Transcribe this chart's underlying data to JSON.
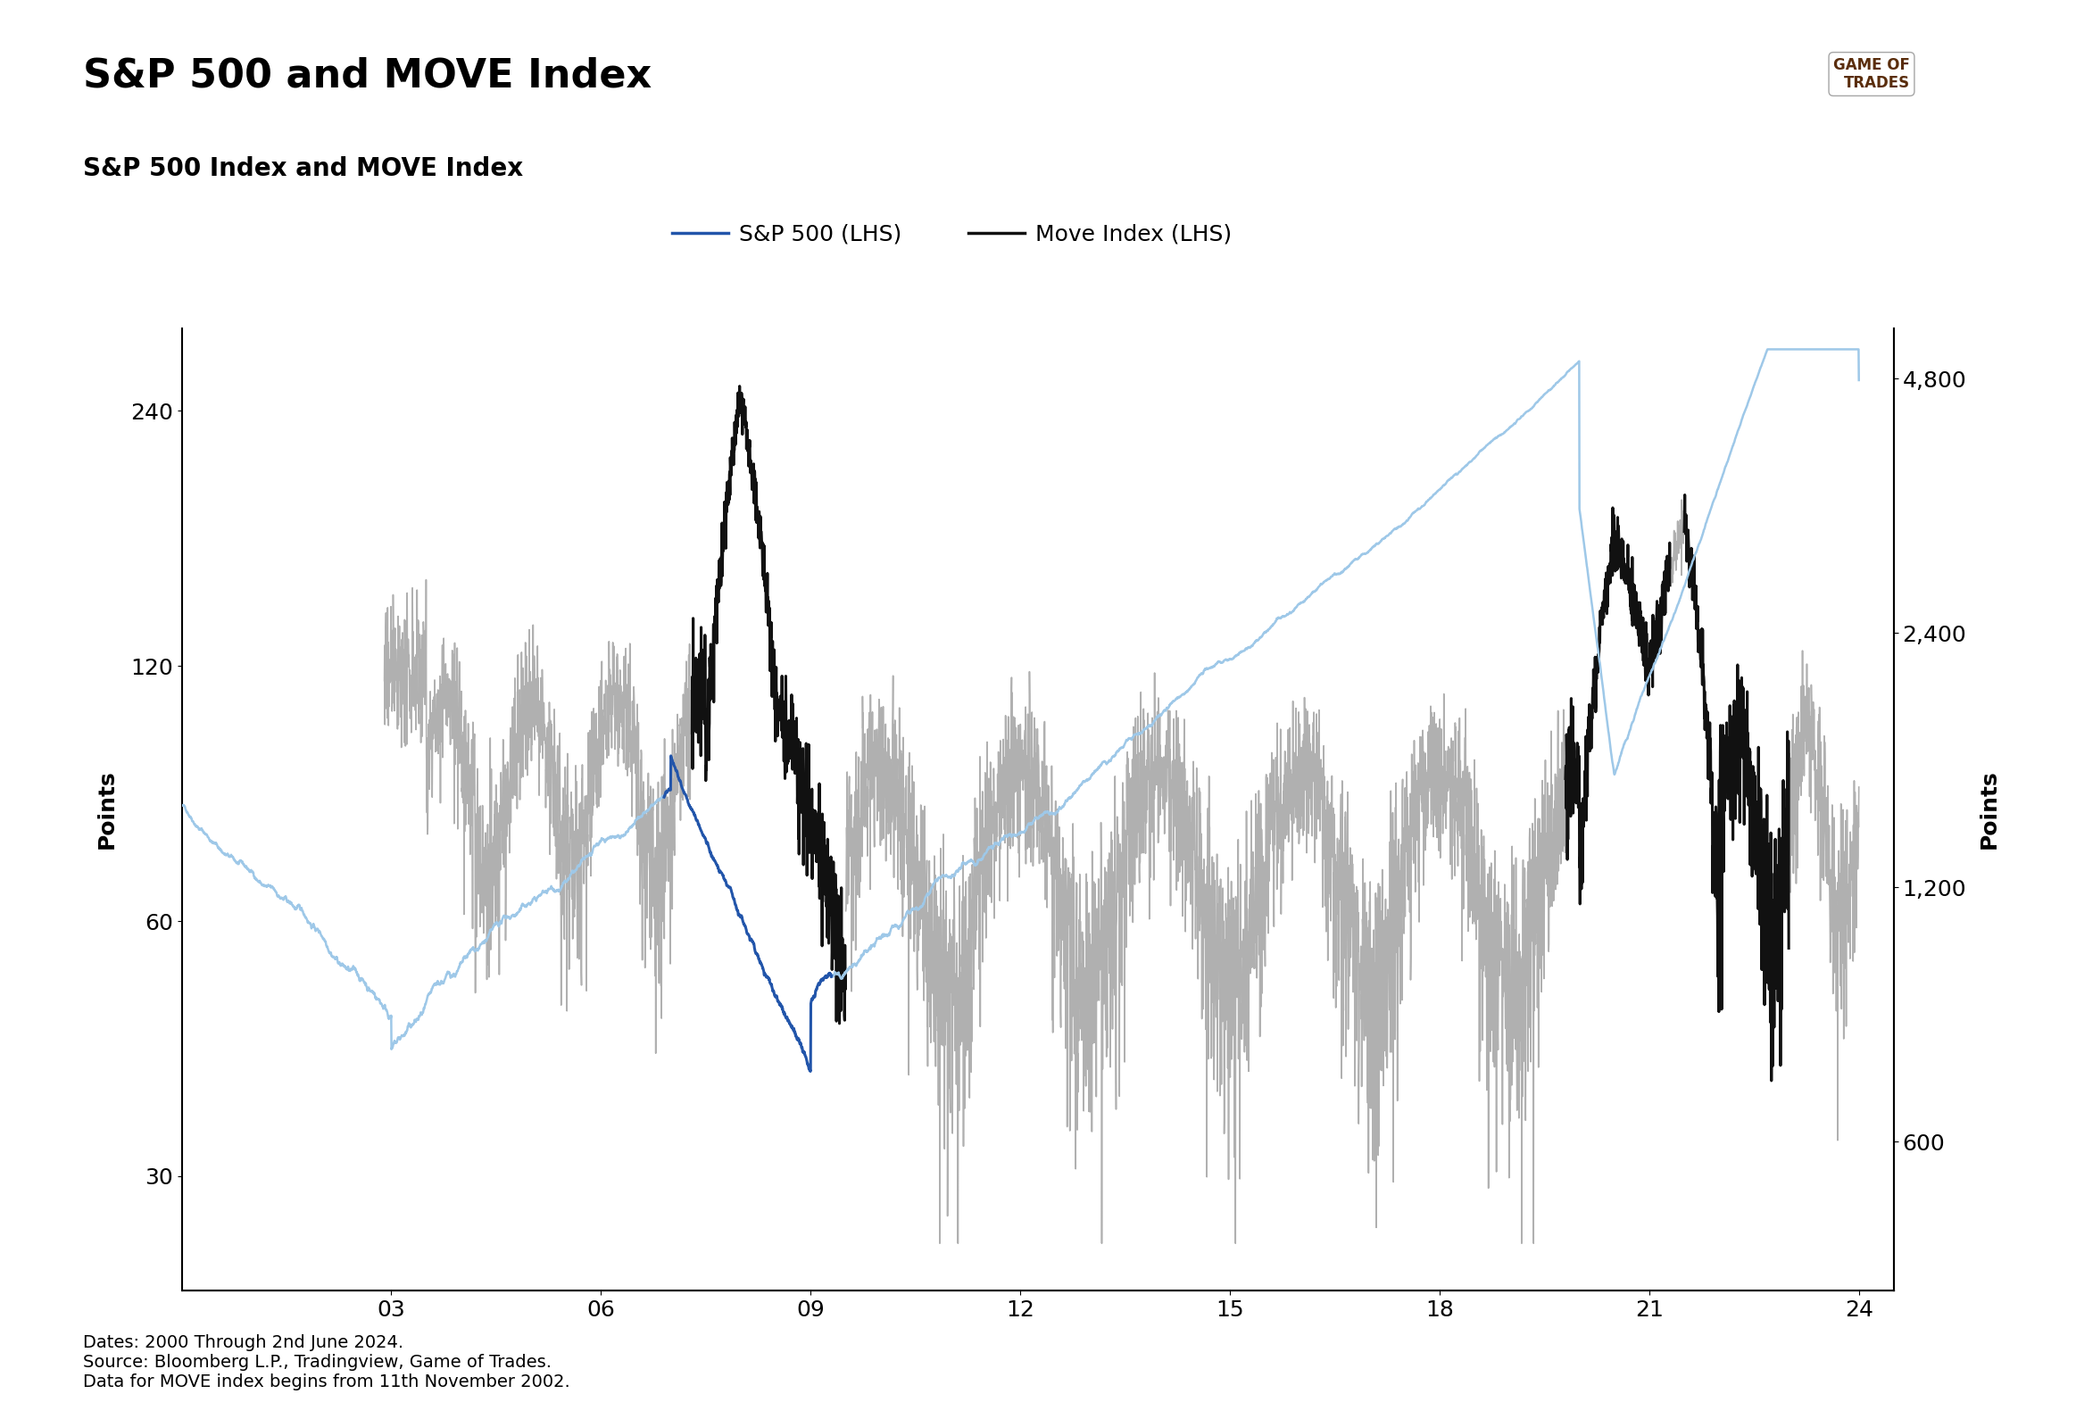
{
  "title": "S&P 500 and MOVE Index",
  "subtitle": "S&P 500 Index and MOVE Index",
  "ylabel_left": "Points",
  "ylabel_right": "Points",
  "legend": [
    {
      "label": "S&P 500 (LHS)",
      "color": "#4472C4",
      "lw": 2.2
    },
    {
      "label": "Move Index (LHS)",
      "color": "#000000",
      "lw": 2.2
    }
  ],
  "sp500_color": "#6aaad4",
  "move_color": "#000000",
  "move_highlight_color": "#000000",
  "background_color": "#ffffff",
  "footnote": "Dates: 2000 Through 2nd June 2024.\nSource: Bloomberg L.P., Tradingview, Game of Trades.\nData for MOVE index begins from 11th November 2002.",
  "left_yticks": [
    30,
    60,
    120,
    240
  ],
  "right_yticks": [
    600,
    1200,
    2400,
    4800
  ],
  "left_ylim": [
    22,
    300
  ],
  "right_ylim": [
    400,
    5200
  ],
  "xtick_labels": [
    "03",
    "06",
    "09",
    "12",
    "15",
    "18",
    "21",
    "24"
  ],
  "title_fontsize": 32,
  "subtitle_fontsize": 20,
  "tick_fontsize": 18,
  "legend_fontsize": 18,
  "footnote_fontsize": 14
}
